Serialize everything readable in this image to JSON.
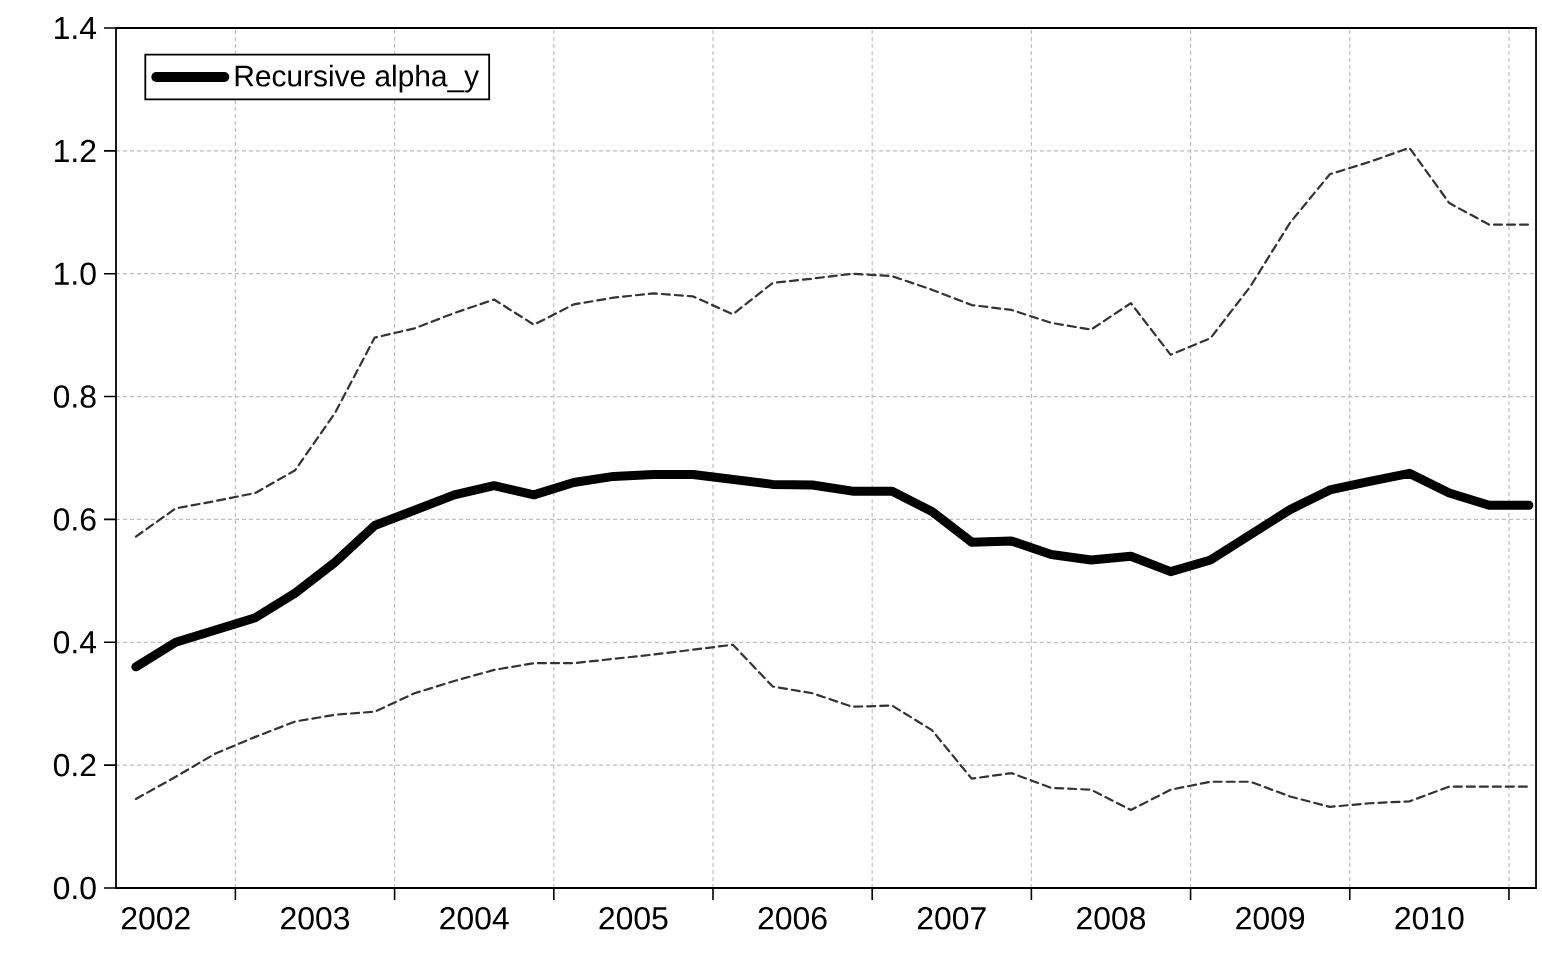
{
  "chart_data": {
    "type": "line",
    "x": [
      2002.375,
      2002.625,
      2002.875,
      2003.125,
      2003.375,
      2003.625,
      2003.875,
      2004.125,
      2004.375,
      2004.625,
      2004.875,
      2005.125,
      2005.375,
      2005.625,
      2005.875,
      2006.125,
      2006.375,
      2006.625,
      2006.875,
      2007.125,
      2007.375,
      2007.625,
      2007.875,
      2008.125,
      2008.375,
      2008.625,
      2008.875,
      2009.125,
      2009.375,
      2009.625,
      2009.875,
      2010.125,
      2010.375,
      2010.625,
      2010.875,
      2011.125
    ],
    "series": [
      {
        "name": "Recursive alpha_y",
        "color": "#000000",
        "line_style": "solid",
        "values": [
          0.36,
          0.4,
          0.42,
          0.44,
          0.48,
          0.53,
          0.59,
          0.615,
          0.64,
          0.655,
          0.64,
          0.66,
          0.67,
          0.673,
          0.673,
          0.665,
          0.657,
          0.656,
          0.646,
          0.646,
          0.613,
          0.563,
          0.565,
          0.543,
          0.534,
          0.54,
          0.515,
          0.534,
          0.575,
          0.616,
          0.648,
          0.662,
          0.675,
          0.643,
          0.623,
          0.623
        ]
      },
      {
        "color": "#333333",
        "line_style": "dashed",
        "values": [
          0.572,
          0.618,
          0.63,
          0.643,
          0.68,
          0.773,
          0.896,
          0.911,
          0.936,
          0.958,
          0.917,
          0.95,
          0.961,
          0.968,
          0.963,
          0.934,
          0.985,
          0.992,
          1.0,
          0.996,
          0.974,
          0.949,
          0.941,
          0.92,
          0.909,
          0.952,
          0.868,
          0.895,
          0.979,
          1.083,
          1.162,
          1.182,
          1.205,
          1.115,
          1.08,
          1.08
        ]
      },
      {
        "color": "#333333",
        "line_style": "dashed",
        "values": [
          0.145,
          0.181,
          0.219,
          0.246,
          0.271,
          0.282,
          0.287,
          0.317,
          0.337,
          0.355,
          0.366,
          0.366,
          0.373,
          0.38,
          0.388,
          0.396,
          0.328,
          0.317,
          0.295,
          0.297,
          0.257,
          0.178,
          0.187,
          0.163,
          0.16,
          0.127,
          0.16,
          0.173,
          0.173,
          0.149,
          0.132,
          0.138,
          0.141,
          0.165,
          0.165,
          0.165
        ]
      }
    ],
    "xlim": [
      2002.25,
      2011.17
    ],
    "xticks": [
      {
        "value": 2002.5,
        "label": "2002"
      },
      {
        "value": 2003.5,
        "label": "2003"
      },
      {
        "value": 2004.5,
        "label": "2004"
      },
      {
        "value": 2005.5,
        "label": "2005"
      },
      {
        "value": 2006.5,
        "label": "2006"
      },
      {
        "value": 2007.5,
        "label": "2007"
      },
      {
        "value": 2008.5,
        "label": "2008"
      },
      {
        "value": 2009.5,
        "label": "2009"
      },
      {
        "value": 2010.5,
        "label": "2010"
      },
      {
        "value": 2003,
        "label": null
      },
      {
        "value": 2004,
        "label": null
      },
      {
        "value": 2005,
        "label": null
      },
      {
        "value": 2006,
        "label": null
      },
      {
        "value": 2007,
        "label": null
      },
      {
        "value": 2008,
        "label": null
      },
      {
        "value": 2009,
        "label": null
      },
      {
        "value": 2010,
        "label": null
      },
      {
        "value": 2011,
        "label": null
      }
    ],
    "ylim": [
      0,
      1.4
    ],
    "yticks": [
      {
        "value": 0,
        "label": "0.0"
      },
      0.2,
      0.4,
      0.6,
      0.8,
      {
        "value": 1.0,
        "label": "1.0"
      },
      1.2,
      1.4
    ],
    "grid": true,
    "legend": "top left"
  }
}
